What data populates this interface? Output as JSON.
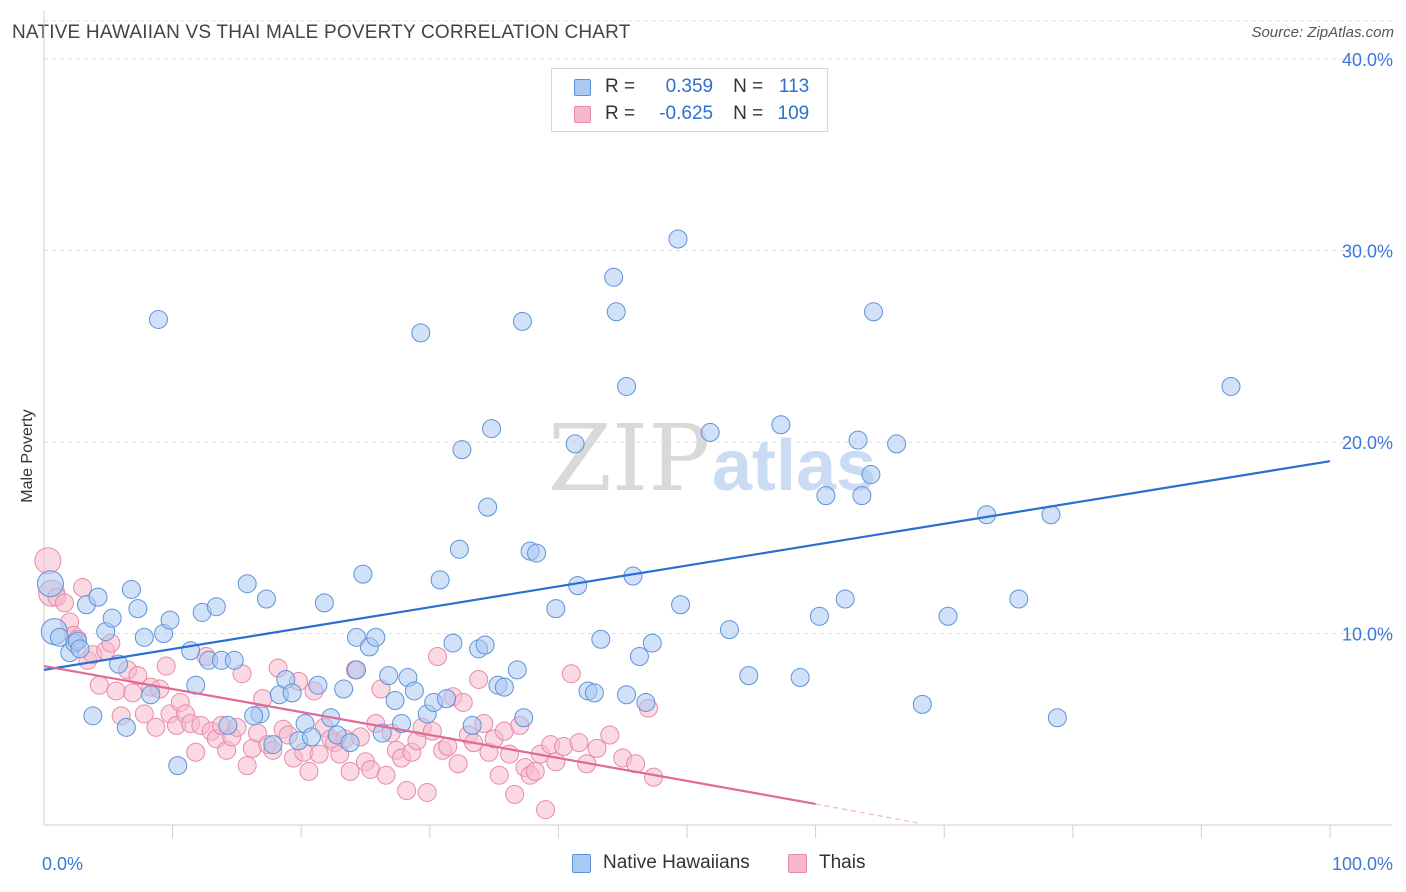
{
  "header": {
    "title": "NATIVE HAWAIIAN VS THAI MALE POVERTY CORRELATION CHART",
    "source": "Source: ZipAtlas.com"
  },
  "watermark": {
    "part1": "ZIP",
    "part2": "atlas"
  },
  "legend": {
    "rows": [
      {
        "r_label": "R =",
        "r_value": "0.359",
        "n_label": "N =",
        "n_value": "113"
      },
      {
        "r_label": "R =",
        "r_value": "-0.625",
        "n_label": "N =",
        "n_value": "109"
      }
    ]
  },
  "bottom_legend": {
    "items": [
      "Native Hawaiians",
      "Thais"
    ]
  },
  "colors": {
    "blue_fill": "#a9c8f2",
    "blue_stroke": "#5f93d9",
    "blue_line": "#2a6fd1",
    "pink_fill": "#f6b9cc",
    "pink_stroke": "#e88aa8",
    "pink_line": "#e06a95",
    "axis_text": "#3c78d8"
  },
  "chart_data": {
    "type": "scatter",
    "title": "NATIVE HAWAIIAN VS THAI MALE POVERTY CORRELATION CHART",
    "xlabel": "",
    "ylabel": "Male Poverty",
    "xlim": [
      0,
      100
    ],
    "ylim": [
      0,
      42
    ],
    "x_tick_labels": [
      "0.0%",
      "100.0%"
    ],
    "y_ticks": [
      10,
      20,
      30,
      40
    ],
    "y_tick_labels": [
      "10.0%",
      "20.0%",
      "30.0%",
      "40.0%"
    ],
    "grid": true,
    "series": [
      {
        "name": "Native Hawaiians",
        "r": 0.359,
        "n": 113,
        "trend": {
          "x": [
            0,
            100
          ],
          "y": [
            8.1,
            19.0
          ]
        },
        "points": [
          [
            0.5,
            12.6
          ],
          [
            0.8,
            10.1
          ],
          [
            1.2,
            9.8
          ],
          [
            2,
            9
          ],
          [
            2.4,
            9.5
          ],
          [
            2.6,
            9.6
          ],
          [
            2.8,
            9.2
          ],
          [
            3.3,
            11.5
          ],
          [
            3.8,
            5.7
          ],
          [
            4.2,
            11.9
          ],
          [
            4.8,
            10.1
          ],
          [
            5.3,
            10.8
          ],
          [
            5.8,
            8.4
          ],
          [
            6.4,
            5.1
          ],
          [
            6.8,
            12.3
          ],
          [
            7.3,
            11.3
          ],
          [
            7.8,
            9.8
          ],
          [
            8.3,
            6.8
          ],
          [
            8.9,
            26.4
          ],
          [
            9.3,
            10
          ],
          [
            9.8,
            10.7
          ],
          [
            10.4,
            3.1
          ],
          [
            11.4,
            9.1
          ],
          [
            11.8,
            7.3
          ],
          [
            12.3,
            11.1
          ],
          [
            12.8,
            8.6
          ],
          [
            13.4,
            11.4
          ],
          [
            13.8,
            8.6
          ],
          [
            14.3,
            5.2
          ],
          [
            14.8,
            8.6
          ],
          [
            15.8,
            12.6
          ],
          [
            16.8,
            5.8
          ],
          [
            16.3,
            5.7
          ],
          [
            17.3,
            11.8
          ],
          [
            17.8,
            4.2
          ],
          [
            18.3,
            6.8
          ],
          [
            18.8,
            7.6
          ],
          [
            19.3,
            6.9
          ],
          [
            19.8,
            4.4
          ],
          [
            20.3,
            5.3
          ],
          [
            20.8,
            4.6
          ],
          [
            21.3,
            7.3
          ],
          [
            21.8,
            11.6
          ],
          [
            22.3,
            5.6
          ],
          [
            22.8,
            4.7
          ],
          [
            23.3,
            7.1
          ],
          [
            23.8,
            4.3
          ],
          [
            24.3,
            8.1
          ],
          [
            24.3,
            9.8
          ],
          [
            24.8,
            13.1
          ],
          [
            25.3,
            9.3
          ],
          [
            25.8,
            9.8
          ],
          [
            26.3,
            4.8
          ],
          [
            26.8,
            7.8
          ],
          [
            27.3,
            6.5
          ],
          [
            27.8,
            5.3
          ],
          [
            28.3,
            7.7
          ],
          [
            28.8,
            7
          ],
          [
            29.3,
            25.7
          ],
          [
            29.8,
            5.8
          ],
          [
            30.3,
            6.4
          ],
          [
            30.8,
            12.8
          ],
          [
            31.3,
            6.6
          ],
          [
            31.8,
            9.5
          ],
          [
            32.3,
            14.4
          ],
          [
            32.5,
            19.6
          ],
          [
            33.3,
            5.2
          ],
          [
            33.8,
            9.2
          ],
          [
            34.3,
            9.4
          ],
          [
            34.5,
            16.6
          ],
          [
            34.8,
            20.7
          ],
          [
            35.3,
            7.3
          ],
          [
            35.8,
            7.2
          ],
          [
            36.8,
            8.1
          ],
          [
            37.2,
            26.3
          ],
          [
            37.3,
            5.6
          ],
          [
            37.8,
            14.3
          ],
          [
            38.3,
            14.2
          ],
          [
            39.8,
            11.3
          ],
          [
            41.3,
            19.9
          ],
          [
            41.5,
            12.5
          ],
          [
            42.3,
            7
          ],
          [
            42.8,
            6.9
          ],
          [
            43.3,
            9.7
          ],
          [
            44.3,
            28.6
          ],
          [
            44.5,
            26.8
          ],
          [
            45.3,
            22.9
          ],
          [
            45.3,
            6.8
          ],
          [
            45.8,
            13
          ],
          [
            46.3,
            8.8
          ],
          [
            46.8,
            6.4
          ],
          [
            47.3,
            9.5
          ],
          [
            49.3,
            30.6
          ],
          [
            49.5,
            11.5
          ],
          [
            51.8,
            20.5
          ],
          [
            53.3,
            10.2
          ],
          [
            54.8,
            7.8
          ],
          [
            57.3,
            20.9
          ],
          [
            58.8,
            7.7
          ],
          [
            60.3,
            10.9
          ],
          [
            60.8,
            17.2
          ],
          [
            62.3,
            11.8
          ],
          [
            63.3,
            20.1
          ],
          [
            63.6,
            17.2
          ],
          [
            64.3,
            18.3
          ],
          [
            64.5,
            26.8
          ],
          [
            66.3,
            19.9
          ],
          [
            68.3,
            6.3
          ],
          [
            70.3,
            10.9
          ],
          [
            73.3,
            16.2
          ],
          [
            75.8,
            11.8
          ],
          [
            78.3,
            16.2
          ],
          [
            78.8,
            5.6
          ],
          [
            92.3,
            22.9
          ]
        ]
      },
      {
        "name": "Thais",
        "r": -0.625,
        "n": 109,
        "trend": {
          "x": [
            0,
            60
          ],
          "y": [
            8.3,
            1.1
          ]
        },
        "trend_dashed": {
          "x": [
            60,
            68
          ],
          "y": [
            1.1,
            0.1
          ]
        },
        "points": [
          [
            0.3,
            13.8
          ],
          [
            0.6,
            12.1
          ],
          [
            1,
            11.9
          ],
          [
            1.6,
            11.6
          ],
          [
            2,
            10.6
          ],
          [
            2.3,
            9.9
          ],
          [
            2.6,
            9.7
          ],
          [
            3,
            12.4
          ],
          [
            3.4,
            8.6
          ],
          [
            3.8,
            8.9
          ],
          [
            4.3,
            7.3
          ],
          [
            4.8,
            9.1
          ],
          [
            5.2,
            9.5
          ],
          [
            5.6,
            7
          ],
          [
            6,
            5.7
          ],
          [
            6.5,
            8.1
          ],
          [
            6.9,
            6.9
          ],
          [
            7.3,
            7.8
          ],
          [
            7.8,
            5.8
          ],
          [
            8.3,
            7.2
          ],
          [
            8.7,
            5.1
          ],
          [
            9,
            7.1
          ],
          [
            9.5,
            8.3
          ],
          [
            9.8,
            5.8
          ],
          [
            10.3,
            5.2
          ],
          [
            10.6,
            6.4
          ],
          [
            11,
            5.8
          ],
          [
            11.4,
            5.3
          ],
          [
            11.8,
            3.8
          ],
          [
            12.2,
            5.2
          ],
          [
            12.6,
            8.8
          ],
          [
            13,
            4.9
          ],
          [
            13.4,
            4.5
          ],
          [
            13.8,
            5.2
          ],
          [
            14.2,
            3.9
          ],
          [
            14.6,
            4.6
          ],
          [
            15,
            5.1
          ],
          [
            15.4,
            7.9
          ],
          [
            15.8,
            3.1
          ],
          [
            16.2,
            4
          ],
          [
            16.6,
            4.8
          ],
          [
            17,
            6.6
          ],
          [
            17.4,
            4.2
          ],
          [
            17.8,
            3.9
          ],
          [
            18.2,
            8.2
          ],
          [
            18.6,
            5
          ],
          [
            19,
            4.7
          ],
          [
            19.4,
            3.5
          ],
          [
            19.8,
            7.5
          ],
          [
            20.2,
            3.8
          ],
          [
            20.6,
            2.8
          ],
          [
            21,
            7
          ],
          [
            21.4,
            3.7
          ],
          [
            21.8,
            5.1
          ],
          [
            22.3,
            4.5
          ],
          [
            22.6,
            4.3
          ],
          [
            23,
            3.7
          ],
          [
            23.4,
            4.5
          ],
          [
            23.8,
            2.8
          ],
          [
            24.2,
            8.1
          ],
          [
            24.6,
            4.6
          ],
          [
            25,
            3.3
          ],
          [
            25.4,
            2.9
          ],
          [
            25.8,
            5.3
          ],
          [
            26.2,
            7.1
          ],
          [
            26.6,
            2.6
          ],
          [
            27,
            4.8
          ],
          [
            27.4,
            3.9
          ],
          [
            27.8,
            3.5
          ],
          [
            28.2,
            1.8
          ],
          [
            28.6,
            3.8
          ],
          [
            29,
            4.4
          ],
          [
            29.4,
            5.1
          ],
          [
            29.8,
            1.7
          ],
          [
            30.2,
            4.9
          ],
          [
            30.6,
            8.8
          ],
          [
            31,
            3.9
          ],
          [
            31.4,
            4.1
          ],
          [
            31.8,
            6.7
          ],
          [
            32.2,
            3.2
          ],
          [
            32.6,
            6.4
          ],
          [
            33,
            4.7
          ],
          [
            33.4,
            4.3
          ],
          [
            33.8,
            7.6
          ],
          [
            34.2,
            5.3
          ],
          [
            34.6,
            3.8
          ],
          [
            35,
            4.5
          ],
          [
            35.4,
            2.6
          ],
          [
            35.8,
            4.9
          ],
          [
            36.2,
            3.7
          ],
          [
            36.6,
            1.6
          ],
          [
            37,
            5.2
          ],
          [
            37.4,
            3
          ],
          [
            37.8,
            2.6
          ],
          [
            38.2,
            2.8
          ],
          [
            38.6,
            3.7
          ],
          [
            39,
            0.8
          ],
          [
            39.4,
            4.2
          ],
          [
            39.8,
            3.3
          ],
          [
            40.4,
            4.1
          ],
          [
            41,
            7.9
          ],
          [
            41.6,
            4.3
          ],
          [
            42.2,
            3.2
          ],
          [
            43,
            4
          ],
          [
            44,
            4.7
          ],
          [
            45,
            3.5
          ],
          [
            46,
            3.2
          ],
          [
            47,
            6.1
          ],
          [
            47.4,
            2.5
          ]
        ]
      }
    ]
  }
}
